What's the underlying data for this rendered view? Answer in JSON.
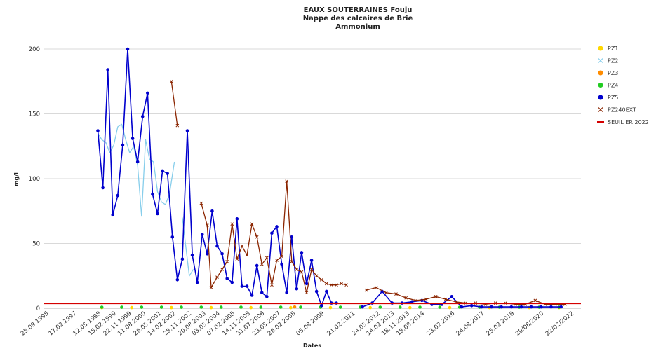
{
  "chart_data": {
    "type": "line",
    "title": [
      "EAUX SOUTERRAINES Fouju",
      "Nappe des calcaires de Brie",
      "Ammonium"
    ],
    "xlabel": "Dates",
    "ylabel": "mg/l",
    "ylim": [
      0,
      200
    ],
    "yticks": [
      0,
      50,
      100,
      150,
      200
    ],
    "xlim": [
      1995.6,
      2022.6
    ],
    "grid": true,
    "legend_position": "right",
    "xtick_labels": [
      {
        "date": 1995.73,
        "label": "25.09.1995"
      },
      {
        "date": 1997.13,
        "label": "17.02.1997"
      },
      {
        "date": 1998.36,
        "label": "12.05.1998"
      },
      {
        "date": 1999.12,
        "label": "15.02.1999"
      },
      {
        "date": 1999.89,
        "label": "22.11.1999"
      },
      {
        "date": 2000.61,
        "label": "11.08.2000"
      },
      {
        "date": 2001.4,
        "label": "26.05.2001"
      },
      {
        "date": 2002.12,
        "label": "14.02.2002"
      },
      {
        "date": 2002.91,
        "label": "28.11.2002"
      },
      {
        "date": 2003.64,
        "label": "20.08.2003"
      },
      {
        "date": 2004.34,
        "label": "03.05.2004"
      },
      {
        "date": 2005.1,
        "label": "07.02.2005"
      },
      {
        "date": 2005.87,
        "label": "14.11.2005"
      },
      {
        "date": 2006.58,
        "label": "31.07.2006"
      },
      {
        "date": 2007.39,
        "label": "23.05.2007"
      },
      {
        "date": 2008.15,
        "label": "26.02.2008"
      },
      {
        "date": 2009.59,
        "label": "05.08.2009"
      },
      {
        "date": 2011.14,
        "label": "21.02.2011"
      },
      {
        "date": 2012.39,
        "label": "24.05.2012"
      },
      {
        "date": 2013.12,
        "label": "14.02.2013"
      },
      {
        "date": 2013.88,
        "label": "18.11.2013"
      },
      {
        "date": 2014.63,
        "label": "18.08.2014"
      },
      {
        "date": 2016.15,
        "label": "23.02.2016"
      },
      {
        "date": 2017.64,
        "label": "24.08.2017"
      },
      {
        "date": 2019.15,
        "label": "25.02.2019"
      },
      {
        "date": 2020.63,
        "label": "20/08/2020"
      },
      {
        "date": 2022.14,
        "label": "22/02/2022"
      }
    ],
    "series": [
      {
        "name": "PZ1",
        "color": "#ffd700",
        "marker": "dot",
        "line": false,
        "x": [
          1998.5,
          2000.0,
          2002.0,
          2004.0,
          2006.0,
          2008.0,
          2010.0,
          2012.0,
          2014.0,
          2016.0,
          2018.0,
          2020.0,
          2021.5
        ],
        "y": [
          0.5,
          0.5,
          0.5,
          0.5,
          0.5,
          0.5,
          0.5,
          0.5,
          0.5,
          0.5,
          0.5,
          0.5,
          0.5
        ]
      },
      {
        "name": "PZ2",
        "color": "#87ceeb",
        "marker": "none",
        "line": true,
        "segments": [
          {
            "x": [
              1998.3,
              1998.5,
              1998.7,
              1998.9,
              1999.1,
              1999.3,
              1999.5,
              1999.7,
              1999.9,
              2000.1,
              2000.3,
              2000.5,
              2000.7,
              2000.9,
              2001.1,
              2001.3,
              2001.5,
              2001.7,
              2001.9,
              2002.15
            ],
            "y": [
              135,
              130,
              128,
              120,
              126,
              140,
              142,
              130,
              120,
              125,
              110,
              71,
              130,
              115,
              113,
              90,
              82,
              80,
              88,
              113
            ]
          },
          {
            "x": [
              2002.55,
              2002.9,
              2003.1
            ],
            "y": [
              70,
              25,
              30
            ]
          }
        ]
      },
      {
        "name": "PZ3",
        "color": "#ff8c00",
        "marker": "dot",
        "line": false,
        "x": [
          2008.2
        ],
        "y": [
          1
        ]
      },
      {
        "name": "PZ4",
        "color": "#22cc22",
        "marker": "dot",
        "line": false,
        "x": [
          1998.5,
          1999.5,
          2000.5,
          2001.5,
          2002.5,
          2003.5,
          2004.5,
          2005.5,
          2006.5,
          2007.5,
          2008.5,
          2009.5,
          2010.5,
          2011.5,
          2012.5,
          2013.5,
          2014.5,
          2015.5,
          2016.5,
          2017.5,
          2018.5,
          2019.5,
          2020.5,
          2021.5
        ],
        "y": [
          0.8,
          0.8,
          0.8,
          0.8,
          0.8,
          0.8,
          0.8,
          0.8,
          0.8,
          0.8,
          0.8,
          0.8,
          0.8,
          0.8,
          0.8,
          0.8,
          0.8,
          0.8,
          0.8,
          0.8,
          0.8,
          0.8,
          0.8,
          0.8
        ]
      },
      {
        "name": "PZ5",
        "color": "#0000cd",
        "marker": "dot",
        "line": true,
        "segments": [
          {
            "x": [
              1998.3,
              1998.55,
              1998.8,
              1999.05,
              1999.3,
              1999.55,
              1999.8,
              2000.05,
              2000.3,
              2000.55,
              2000.8,
              2001.05,
              2001.3,
              2001.55,
              2001.8,
              2002.05,
              2002.3,
              2002.55,
              2002.8,
              2003.05,
              2003.3,
              2003.55,
              2003.8,
              2004.05,
              2004.3,
              2004.55,
              2004.8,
              2005.05,
              2005.3,
              2005.55,
              2005.8,
              2006.05,
              2006.3,
              2006.55,
              2006.8,
              2007.05,
              2007.3,
              2007.55,
              2007.8,
              2008.05,
              2008.3,
              2008.55,
              2008.8,
              2009.05,
              2009.3,
              2009.55,
              2009.8,
              2010.05,
              2010.3
            ],
            "y": [
              137,
              93,
              184,
              72,
              87,
              126,
              200,
              131,
              113,
              148,
              166,
              88,
              73,
              106,
              104,
              55,
              22,
              38,
              137,
              41,
              20,
              57,
              42,
              75,
              48,
              42,
              23,
              20,
              69,
              17,
              17,
              10,
              33,
              12,
              9,
              58,
              63,
              34,
              12,
              55,
              15,
              43,
              19,
              37,
              13,
              2,
              13,
              4,
              4
            ]
          },
          {
            "x": [
              2011.6,
              2012.1,
              2012.6,
              2013.1,
              2013.6,
              2014.1,
              2014.6,
              2015.1,
              2015.6,
              2016.1,
              2016.6,
              2017.1,
              2017.6,
              2018.1,
              2018.6,
              2019.1,
              2019.6,
              2020.1,
              2020.6,
              2021.1,
              2021.6
            ],
            "y": [
              1,
              4,
              13,
              4,
              4,
              5,
              6,
              3,
              3,
              9,
              1,
              2,
              1,
              1,
              1,
              1,
              1,
              1,
              1,
              1,
              1
            ]
          }
        ]
      },
      {
        "name": "PZ240EXT",
        "color": "#8b2500",
        "marker": "x",
        "line": true,
        "segments": [
          {
            "x": [
              2002.0,
              2002.3
            ],
            "y": [
              175,
              141
            ]
          },
          {
            "x": [
              2003.5,
              2003.8,
              2004.0,
              2004.3,
              2004.55,
              2004.8,
              2005.05,
              2005.3,
              2005.55,
              2005.8,
              2006.05,
              2006.3,
              2006.55,
              2006.8,
              2007.05,
              2007.3,
              2007.55,
              2007.8,
              2008.05,
              2008.3,
              2008.55,
              2008.8,
              2009.05,
              2009.3,
              2009.55,
              2009.8,
              2010.05,
              2010.3,
              2010.55,
              2010.8
            ],
            "y": [
              81,
              64,
              16,
              24,
              30,
              36,
              65,
              38,
              48,
              41,
              65,
              55,
              34,
              39,
              18,
              37,
              40,
              98,
              36,
              30,
              28,
              12,
              30,
              25,
              22,
              19,
              18,
              18,
              19,
              18
            ]
          },
          {
            "x": [
              2011.8,
              2012.3,
              2012.8,
              2013.3,
              2013.8,
              2014.3,
              2014.8,
              2015.3,
              2015.8,
              2016.3,
              2016.8,
              2017.3,
              2017.8,
              2018.3,
              2018.8,
              2019.3,
              2019.8,
              2020.3,
              2020.8,
              2021.3,
              2021.8
            ],
            "y": [
              14,
              16,
              12,
              11,
              8,
              6,
              7,
              9,
              7,
              5,
              4,
              4,
              3,
              4,
              4,
              3,
              3,
              6,
              3,
              3,
              3
            ]
          }
        ]
      },
      {
        "name": "SEUIL ER 2022",
        "color": "#d40000",
        "marker": "none",
        "line": true,
        "segments": [
          {
            "x": [
              1995.6,
              2022.6
            ],
            "y": [
              3.75,
              3.75
            ]
          }
        ]
      }
    ]
  }
}
